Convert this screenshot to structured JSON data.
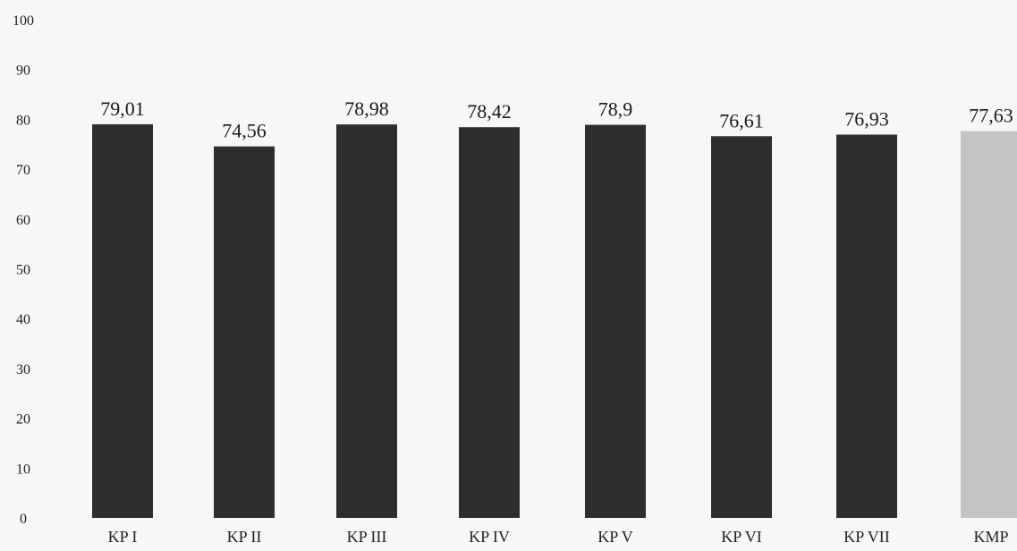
{
  "chart_data": {
    "type": "bar",
    "title": "",
    "xlabel": "",
    "ylabel": "",
    "ylim": [
      0,
      100
    ],
    "yticks": [
      0,
      10,
      20,
      30,
      40,
      50,
      60,
      70,
      80,
      90,
      100
    ],
    "grid": false,
    "legend": "none",
    "categories": [
      "KP I",
      "KP II",
      "KP III",
      "KP IV",
      "KP V",
      "KP VI",
      "KP VII",
      "KMP"
    ],
    "values": [
      79.01,
      74.56,
      78.98,
      78.42,
      78.9,
      76.61,
      76.93,
      77.63
    ],
    "data_labels": [
      "79,01",
      "74,56",
      "78,98",
      "78,42",
      "78,9",
      "76,61",
      "76,93",
      "77,63"
    ],
    "bar_colors": [
      "#2e2e2e",
      "#2e2e2e",
      "#2e2e2e",
      "#2e2e2e",
      "#2e2e2e",
      "#2e2e2e",
      "#2e2e2e",
      "#c4c4c4"
    ]
  }
}
